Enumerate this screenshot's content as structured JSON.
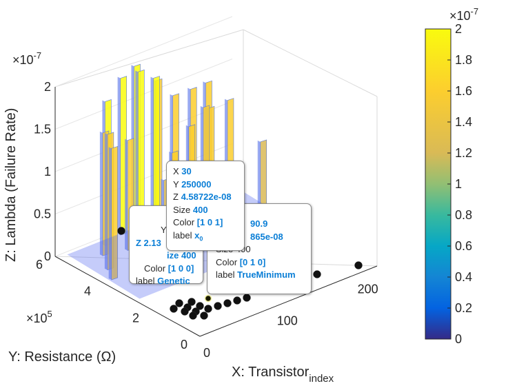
{
  "chart_data": {
    "type": "bar3d",
    "xlabel": "X: Transistor",
    "xlabel_sub": "index",
    "ylabel": "Y: Resistance (Ω)",
    "zlabel": "Z: Lambda (Failure Rate)",
    "x_ticks": [
      "0",
      "100",
      "200"
    ],
    "y_ticks": [
      "0",
      "2",
      "4",
      "6"
    ],
    "y_multiplier": "×10",
    "y_multiplier_exp": "5",
    "z_ticks": [
      "0",
      "0.5",
      "1",
      "1.5",
      "2"
    ],
    "z_multiplier": "×10",
    "z_multiplier_exp": "-7",
    "xlim": [
      0,
      220
    ],
    "ylim": [
      0,
      600000
    ],
    "zlim": [
      0,
      2e-07
    ],
    "grid": true,
    "colormap": "parula",
    "colorbar": {
      "ticks": [
        "0",
        "0.2",
        "0.4",
        "0.6",
        "0.8",
        "1",
        "1.2",
        "1.4",
        "1.6",
        "1.8",
        "2"
      ],
      "multiplier": "×10",
      "multiplier_exp": "-7",
      "range": [
        0,
        2e-07
      ]
    },
    "peaks": [
      {
        "x": 10,
        "y": 400000,
        "z": 1.55e-07
      },
      {
        "x": 20,
        "y": 450000,
        "z": 1.6e-07
      },
      {
        "x": 35,
        "y": 520000,
        "z": 1.45e-07
      },
      {
        "x": 50,
        "y": 560000,
        "z": 1.7e-07
      },
      {
        "x": 60,
        "y": 500000,
        "z": 1.3e-07
      },
      {
        "x": 75,
        "y": 580000,
        "z": 1.85e-07
      },
      {
        "x": 85,
        "y": 540000,
        "z": 1.95e-07
      },
      {
        "x": 95,
        "y": 590000,
        "z": 1.9e-07
      },
      {
        "x": 110,
        "y": 560000,
        "z": 1.75e-07
      },
      {
        "x": 125,
        "y": 600000,
        "z": 1.6e-07
      },
      {
        "x": 140,
        "y": 580000,
        "z": 1.4e-07
      },
      {
        "x": 150,
        "y": 540000,
        "z": 1.5e-07
      },
      {
        "x": 160,
        "y": 500000,
        "z": 1.3e-07
      },
      {
        "x": 175,
        "y": 560000,
        "z": 1.45e-07
      },
      {
        "x": 190,
        "y": 520000,
        "z": 1.25e-07
      },
      {
        "x": 45,
        "y": 300000,
        "z": 1.2e-07
      },
      {
        "x": 70,
        "y": 350000,
        "z": 1.35e-07
      },
      {
        "x": 100,
        "y": 380000,
        "z": 1.5e-07
      },
      {
        "x": 130,
        "y": 420000,
        "z": 1.55e-07
      },
      {
        "x": 165,
        "y": 300000,
        "z": 1.2e-07
      }
    ],
    "datatips": [
      {
        "name": "x0",
        "X": "30",
        "Y": "250000",
        "Z": "4.58722e-08",
        "Size": "400",
        "Color": "[1 0 1]",
        "label": "x",
        "label_sub": "0"
      },
      {
        "name": "Genetic",
        "Y_partial": "Y",
        "Z_partial": "Z 2.13",
        "Size_partial": "ize 400",
        "Color": "[1 0 0]",
        "label": "Genetic"
      },
      {
        "name": "TrueMinimum",
        "X_partial": "90.9",
        "Z_partial": "865e-08",
        "Size_partial": "Size 400",
        "Color": "[0 1 0]",
        "label": "TrueMinimum"
      }
    ],
    "datatip_keys": {
      "x": "X",
      "y": "Y",
      "z": "Z",
      "size": "Size",
      "color": "Color",
      "label": "label"
    }
  }
}
